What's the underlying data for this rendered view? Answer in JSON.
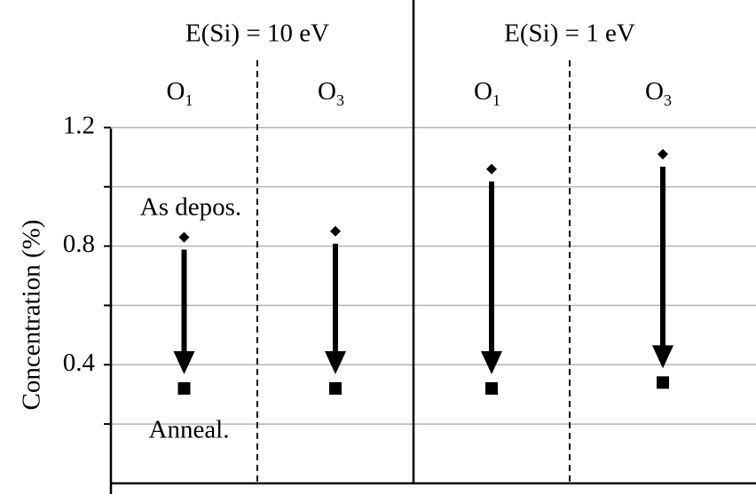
{
  "chart_data": {
    "type": "arrow-scatter",
    "y_label": "Concentration (%)",
    "groups": [
      "E(Si) = 10 eV",
      "E(Si) = 1 eV"
    ],
    "categories": [
      "O1",
      "O3",
      "O1",
      "O3"
    ],
    "series": [
      {
        "name": "As depos.",
        "color": "#000000",
        "marker": "diamond",
        "values": [
          0.83,
          0.85,
          1.06,
          1.11
        ]
      },
      {
        "name": "Anneal.",
        "color": "#000000",
        "marker": "square",
        "values": [
          0.32,
          0.32,
          0.32,
          0.34
        ]
      }
    ],
    "ylim": [
      0,
      1.63
    ],
    "yticks": [
      0.4,
      0.8,
      1.2
    ],
    "minor_yticks": [
      0.2,
      0.6,
      1.0
    ],
    "grid": true
  }
}
